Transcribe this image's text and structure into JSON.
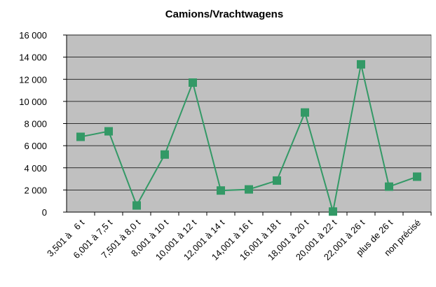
{
  "chart_data": {
    "type": "line",
    "title": "Camions/Vrachtwagens",
    "categories": [
      "3,501 à   6 t",
      "6,001 à 7,5 t",
      "7,501 à 8,0 t",
      "8,001 à 10 t",
      "10,001 à 12 t",
      "12,001 à 14 t",
      "14,001 à 16 t",
      "16,001 à 18 t",
      "18,001 à 20 t",
      "20,001 à 22 t",
      "22,001 à 26 t",
      "plus de 26 t",
      "non précisé"
    ],
    "values": [
      6800,
      7300,
      600,
      5200,
      11700,
      1950,
      2050,
      2850,
      9000,
      50,
      13350,
      2300,
      3200
    ],
    "color": "#339966",
    "ylim": [
      0,
      16000
    ],
    "yticks": [
      0,
      {
        "value": 2000,
        "label": "2 000"
      },
      {
        "value": 4000,
        "label": "4 000"
      },
      {
        "value": 6000,
        "label": "6 000"
      },
      {
        "value": 8000,
        "label": "8 000"
      },
      {
        "value": 10000,
        "label": "10 000"
      },
      {
        "value": 12000,
        "label": "12 000"
      },
      {
        "value": 14000,
        "label": "14 000"
      },
      {
        "value": 16000,
        "label": "16 000"
      }
    ],
    "grid": true
  }
}
